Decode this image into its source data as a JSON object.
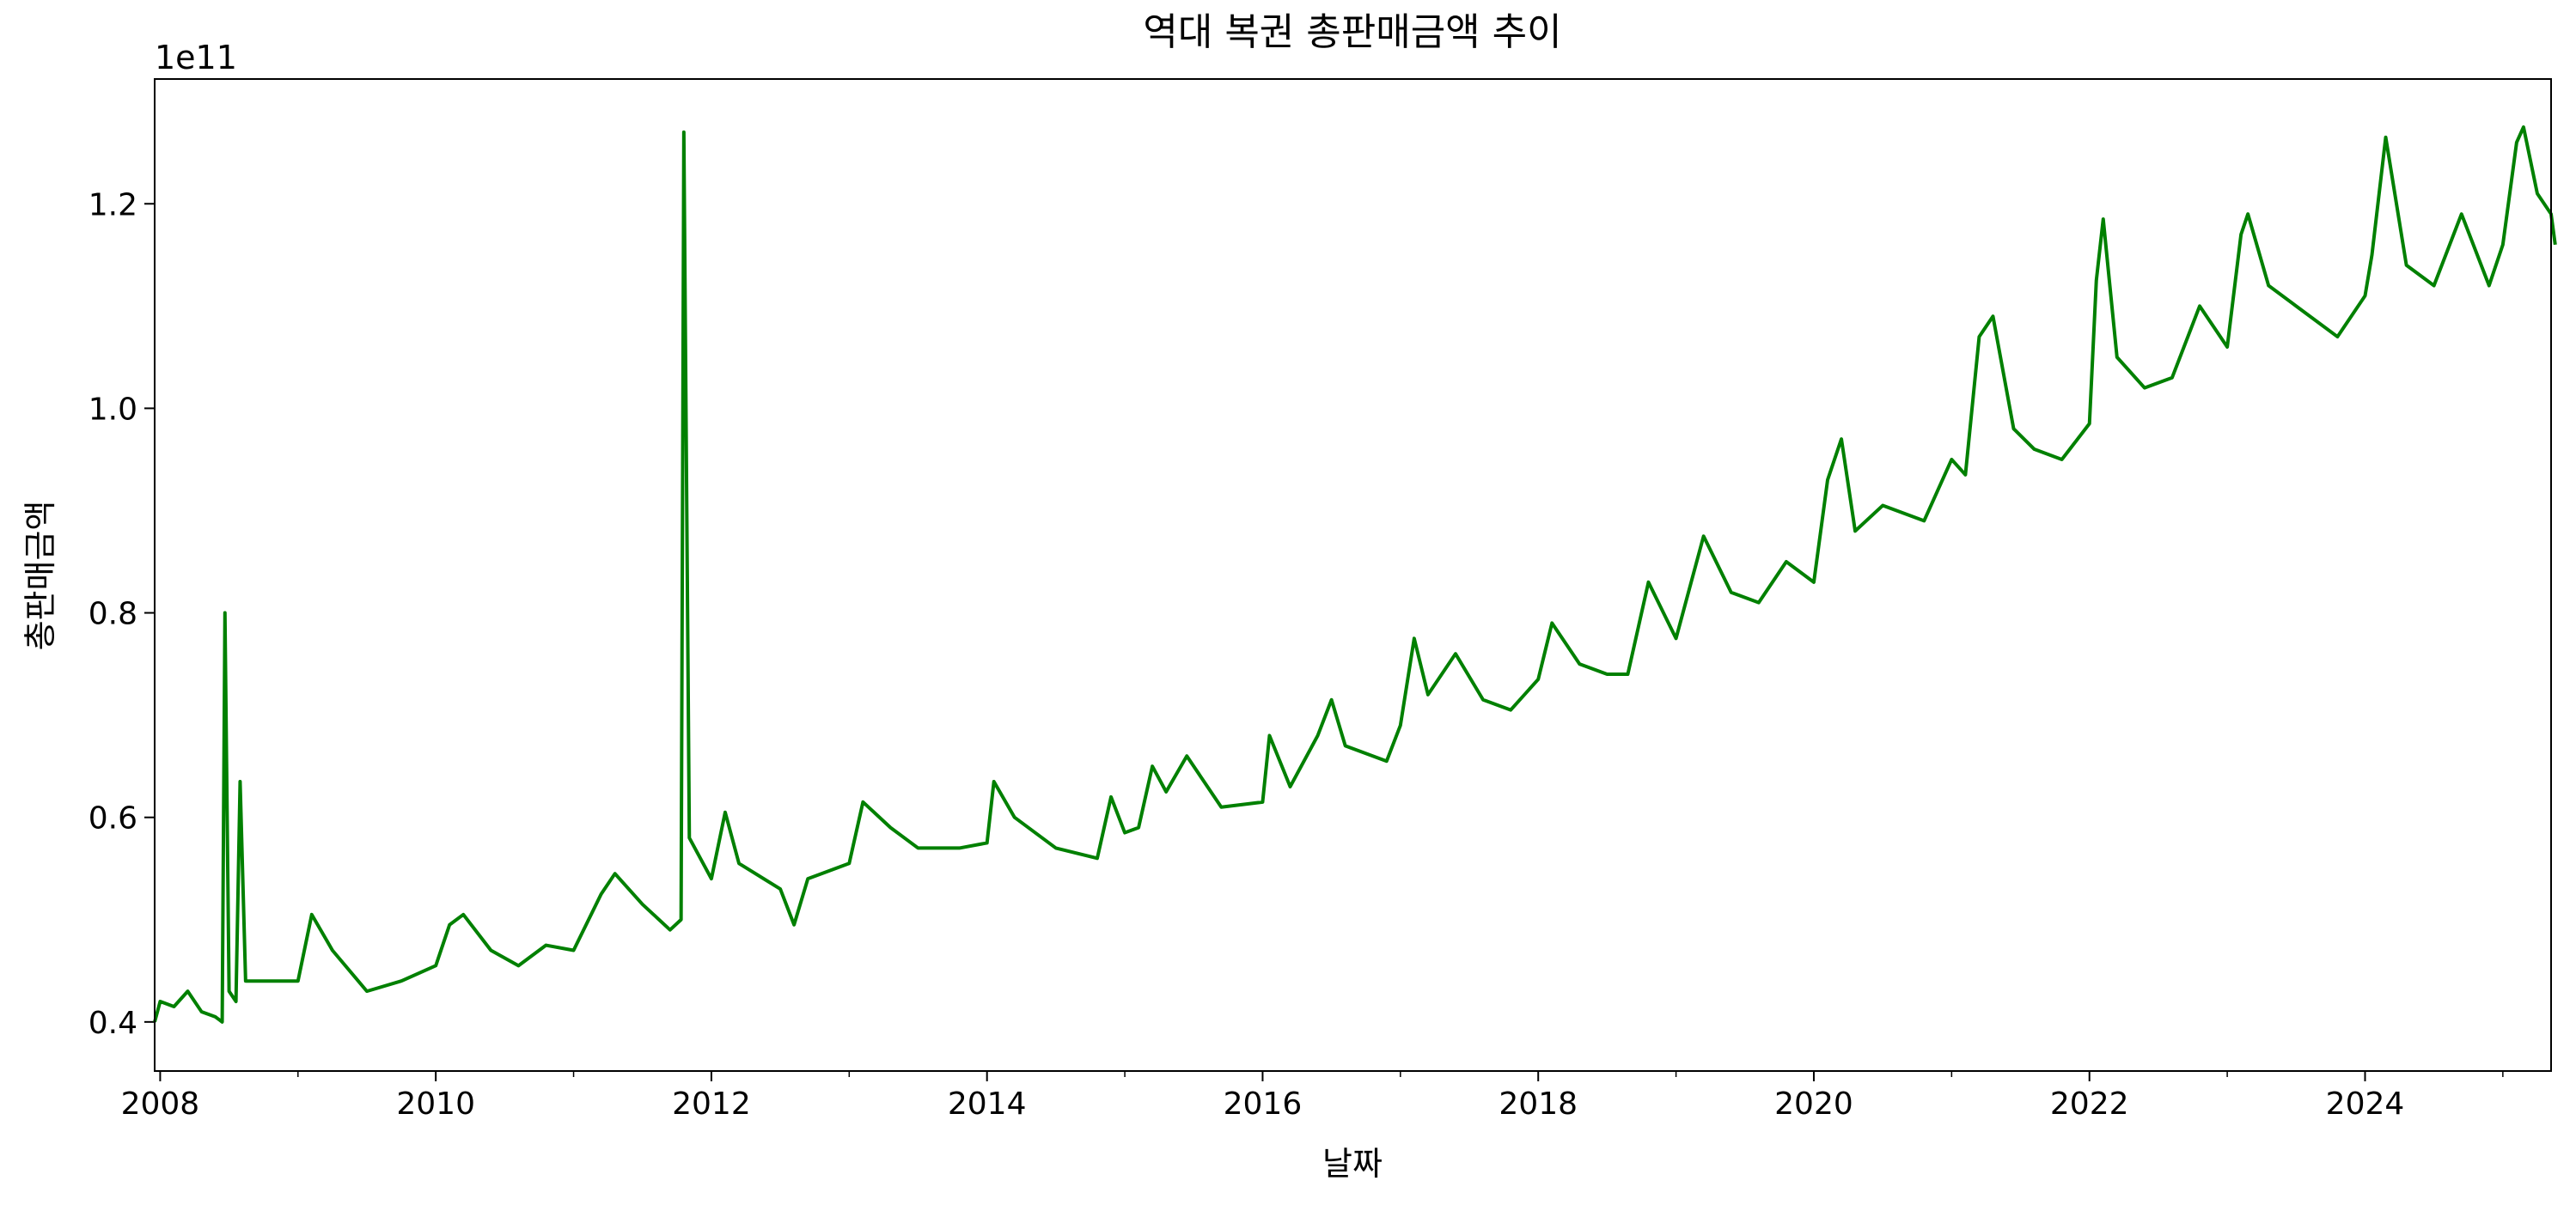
{
  "chart_data": {
    "type": "line",
    "title": "역대 복권 총판매금액 추이",
    "x_label": "날짜",
    "y_label": "총판매금액",
    "y_offset_label": "1e11",
    "x": [
      2007.96,
      2008.0,
      2008.1,
      2008.2,
      2008.3,
      2008.4,
      2008.45,
      2008.47,
      2008.5,
      2008.55,
      2008.58,
      2008.62,
      2008.8,
      2009.0,
      2009.1,
      2009.25,
      2009.5,
      2009.75,
      2010.0,
      2010.1,
      2010.2,
      2010.4,
      2010.6,
      2010.8,
      2011.0,
      2011.2,
      2011.3,
      2011.5,
      2011.7,
      2011.78,
      2011.8,
      2011.84,
      2012.0,
      2012.1,
      2012.2,
      2012.5,
      2012.6,
      2012.7,
      2013.0,
      2013.1,
      2013.3,
      2013.5,
      2013.8,
      2014.0,
      2014.05,
      2014.2,
      2014.5,
      2014.8,
      2014.9,
      2015.0,
      2015.1,
      2015.2,
      2015.3,
      2015.45,
      2015.7,
      2016.0,
      2016.05,
      2016.2,
      2016.4,
      2016.5,
      2016.6,
      2016.9,
      2017.0,
      2017.1,
      2017.2,
      2017.4,
      2017.6,
      2017.8,
      2018.0,
      2018.1,
      2018.3,
      2018.5,
      2018.65,
      2018.8,
      2019.0,
      2019.1,
      2019.2,
      2019.4,
      2019.6,
      2019.8,
      2020.0,
      2020.1,
      2020.2,
      2020.3,
      2020.5,
      2020.8,
      2021.0,
      2021.1,
      2021.2,
      2021.3,
      2021.45,
      2021.6,
      2021.8,
      2022.0,
      2022.05,
      2022.1,
      2022.2,
      2022.4,
      2022.6,
      2022.8,
      2023.0,
      2023.1,
      2023.15,
      2023.3,
      2023.5,
      2023.8,
      2024.0,
      2024.05,
      2024.15,
      2024.3,
      2024.5,
      2024.7,
      2024.9,
      2025.0,
      2025.1,
      2025.15,
      2025.25,
      2025.35,
      2025.38
    ],
    "series": [
      {
        "name": "총판매금액",
        "color": "#008000",
        "values": [
          0.4,
          0.42,
          0.415,
          0.43,
          0.41,
          0.405,
          0.4,
          0.8,
          0.43,
          0.42,
          0.635,
          0.44,
          0.44,
          0.44,
          0.505,
          0.47,
          0.43,
          0.44,
          0.455,
          0.495,
          0.505,
          0.47,
          0.455,
          0.475,
          0.47,
          0.525,
          0.545,
          0.515,
          0.49,
          0.5,
          1.27,
          0.58,
          0.54,
          0.605,
          0.555,
          0.53,
          0.495,
          0.54,
          0.555,
          0.615,
          0.59,
          0.57,
          0.57,
          0.575,
          0.635,
          0.6,
          0.57,
          0.56,
          0.62,
          0.585,
          0.59,
          0.65,
          0.625,
          0.66,
          0.61,
          0.615,
          0.68,
          0.63,
          0.68,
          0.715,
          0.67,
          0.655,
          0.69,
          0.775,
          0.72,
          0.76,
          0.715,
          0.705,
          0.735,
          0.79,
          0.75,
          0.74,
          0.74,
          0.83,
          0.775,
          0.825,
          0.875,
          0.82,
          0.81,
          0.85,
          0.83,
          0.93,
          0.97,
          0.88,
          0.905,
          0.89,
          0.95,
          0.935,
          1.07,
          1.09,
          0.98,
          0.96,
          0.95,
          0.985,
          1.125,
          1.185,
          1.05,
          1.02,
          1.03,
          1.1,
          1.06,
          1.17,
          1.19,
          1.12,
          1.1,
          1.07,
          1.11,
          1.15,
          1.265,
          1.14,
          1.12,
          1.19,
          1.12,
          1.16,
          1.26,
          1.275,
          1.21,
          1.19,
          1.16
        ]
      }
    ],
    "xlim": [
      2007.96,
      2025.35
    ],
    "ylim": [
      0.352,
      1.322
    ],
    "xticks": [
      2008,
      2010,
      2012,
      2014,
      2016,
      2018,
      2020,
      2022,
      2024
    ],
    "xminorticks": [
      2009,
      2011,
      2013,
      2015,
      2017,
      2019,
      2021,
      2023,
      2025
    ],
    "yticks": [
      0.4,
      0.6,
      0.8,
      {
        "value": 1,
        "label": "1.0"
      },
      1.2
    ],
    "grid": false
  }
}
